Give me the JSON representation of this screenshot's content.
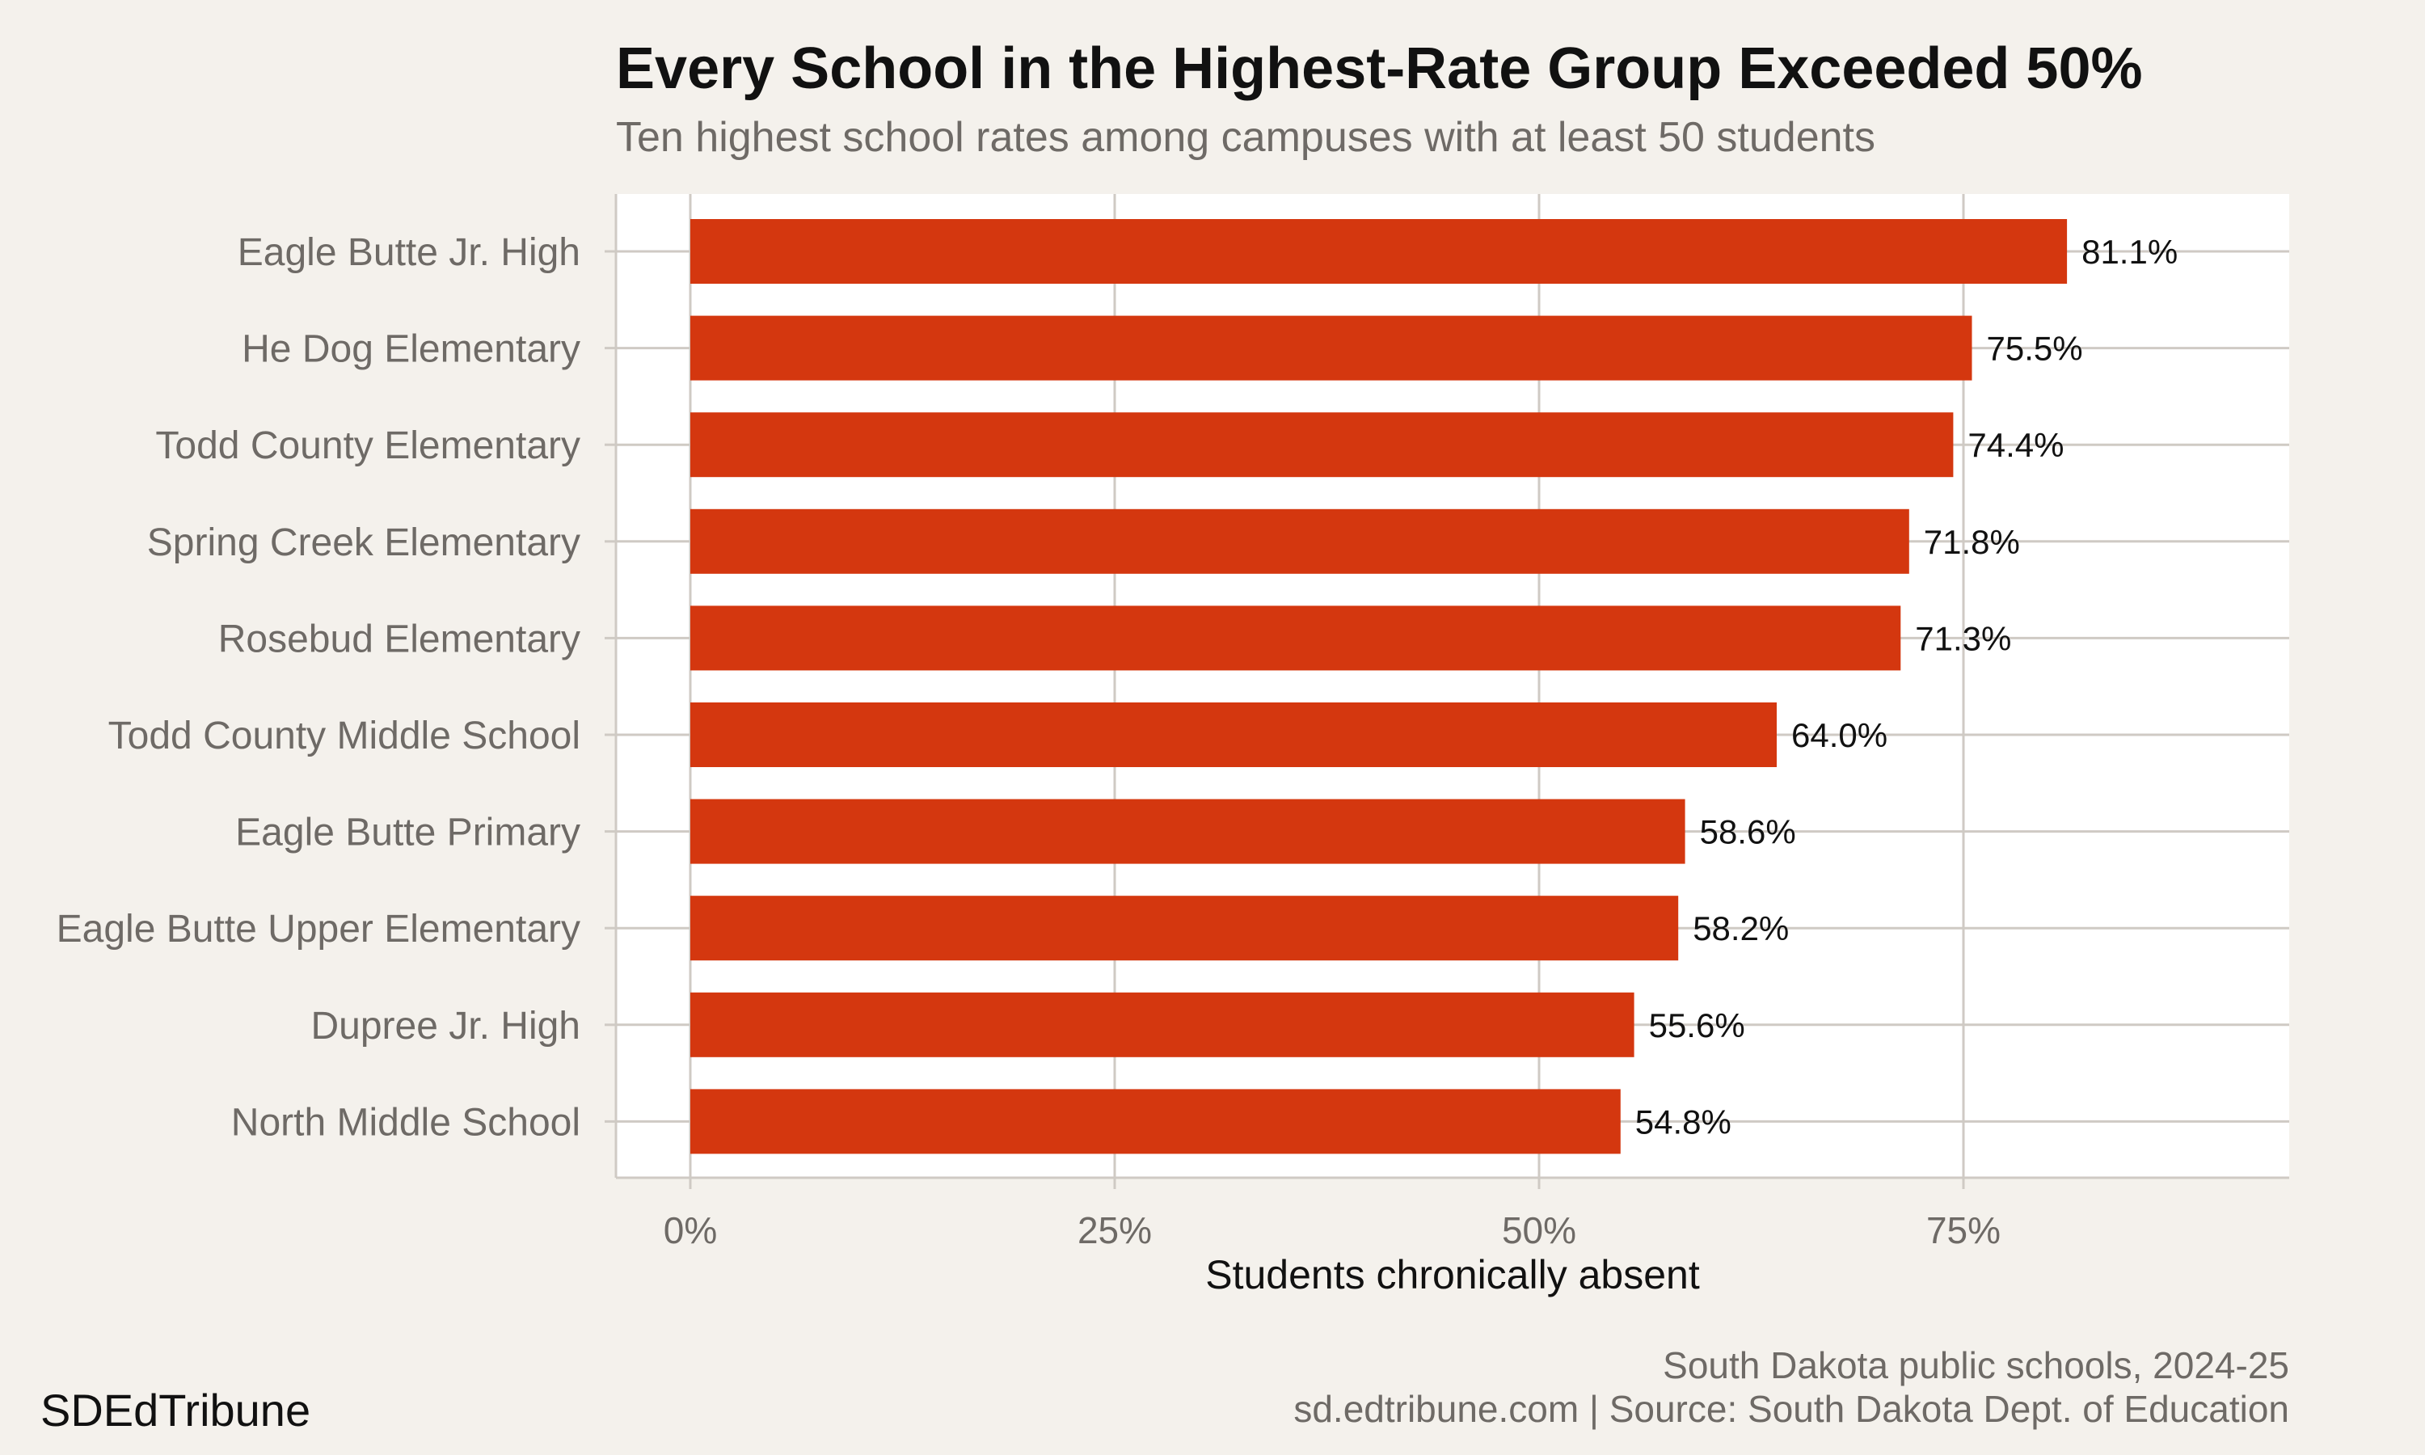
{
  "header": {
    "title": "Every School in the Highest-Rate Group Exceeded 50%",
    "subtitle": "Ten highest school rates among campuses with at least 50 students"
  },
  "footer": {
    "brand": "SDEdTribune",
    "caption_line1": "South Dakota public schools, 2024-25",
    "caption_line2": "sd.edtribune.com | Source: South Dakota Dept. of Education"
  },
  "colors": {
    "bar": "#d4370f",
    "panel_background": "#ffffff",
    "page_background": "#f4f1ec",
    "grid": "#cfcac4",
    "axis_text": "#6e6a66",
    "value_text": "#111111"
  },
  "chart_data": {
    "type": "bar",
    "orientation": "horizontal",
    "title": "Every School in the Highest-Rate Group Exceeded 50%",
    "subtitle": "Ten highest school rates among campuses with at least 50 students",
    "xlabel": "Students chronically absent",
    "ylabel": "",
    "xlim": [
      0,
      95
    ],
    "x_ticks": [
      0,
      25,
      50,
      75
    ],
    "x_tick_labels": [
      "0%",
      "25%",
      "50%",
      "75%"
    ],
    "grid": true,
    "legend": "none",
    "categories": [
      "Eagle Butte Jr. High",
      "He Dog Elementary",
      "Todd County Elementary",
      "Spring Creek Elementary",
      "Rosebud Elementary",
      "Todd County Middle School",
      "Eagle Butte Primary",
      "Eagle Butte Upper Elementary",
      "Dupree Jr. High",
      "North Middle School"
    ],
    "values": [
      81.1,
      75.5,
      74.4,
      71.8,
      71.3,
      64.0,
      58.6,
      58.2,
      55.6,
      54.8
    ],
    "value_labels": [
      "81.1%",
      "75.5%",
      "74.4%",
      "71.8%",
      "71.3%",
      "64.0%",
      "58.6%",
      "58.2%",
      "55.6%",
      "54.8%"
    ]
  }
}
